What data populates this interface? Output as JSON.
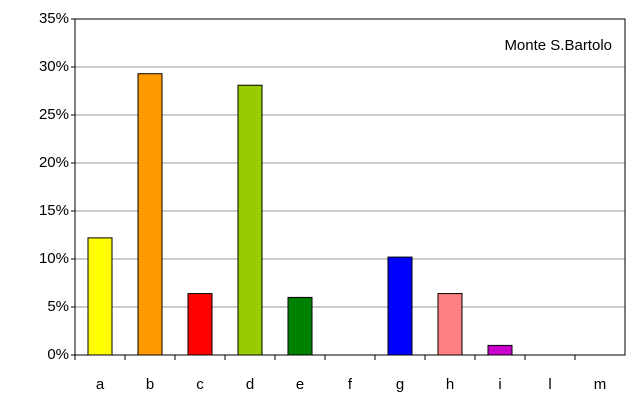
{
  "chart_data": {
    "type": "bar",
    "title": "Monte S.Bartolo",
    "categories": [
      "a",
      "b",
      "c",
      "d",
      "e",
      "f",
      "g",
      "h",
      "i",
      "l",
      "m"
    ],
    "values": [
      12.2,
      29.3,
      6.4,
      28.1,
      6.0,
      0,
      10.2,
      6.4,
      1.0,
      0,
      0
    ],
    "colors": [
      "#ffff00",
      "#ff9900",
      "#ff0000",
      "#99cc00",
      "#008000",
      null,
      "#0000ff",
      "#ff8080",
      "#cc00cc",
      null,
      null
    ],
    "ylim": [
      0,
      35
    ],
    "yticks": [
      {
        "value": 0,
        "label": "0%"
      },
      {
        "value": 5,
        "label": "5%"
      },
      {
        "value": 10,
        "label": "10%"
      },
      {
        "value": 15,
        "label": "15%"
      },
      {
        "value": 20,
        "label": "20%"
      },
      {
        "value": 25,
        "label": "25%"
      },
      {
        "value": 30,
        "label": "30%"
      },
      {
        "value": 35,
        "label": "35%"
      }
    ],
    "grid": true
  }
}
